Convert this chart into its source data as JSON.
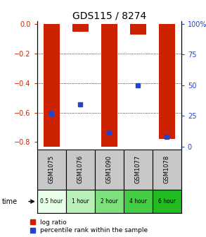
{
  "title": "GDS115 / 8274",
  "samples": [
    "GSM1075",
    "GSM1076",
    "GSM1090",
    "GSM1077",
    "GSM1078"
  ],
  "time_labels": [
    "0.5 hour",
    "1 hour",
    "2 hour",
    "4 hour",
    "6 hour"
  ],
  "log_ratio": [
    -0.83,
    -0.05,
    -0.83,
    -0.07,
    -0.78
  ],
  "percentile": [
    28,
    35,
    13,
    50,
    10
  ],
  "bar_color": "#cc2200",
  "blue_color": "#2244cc",
  "ylim_left": [
    -0.85,
    0.02
  ],
  "ylim_right": [
    -2.125,
    102.125
  ],
  "yticks_left": [
    0.0,
    -0.2,
    -0.4,
    -0.6,
    -0.8
  ],
  "yticks_right": [
    0,
    25,
    50,
    75,
    100
  ],
  "grid_lines": [
    -0.2,
    -0.4,
    -0.6
  ],
  "time_bg_colors": [
    "#e8ffe8",
    "#b8f0b8",
    "#7de07d",
    "#44cc44",
    "#22bb22"
  ],
  "sample_bg_color": "#c8c8c8",
  "bar_width": 0.55,
  "title_fontsize": 10
}
